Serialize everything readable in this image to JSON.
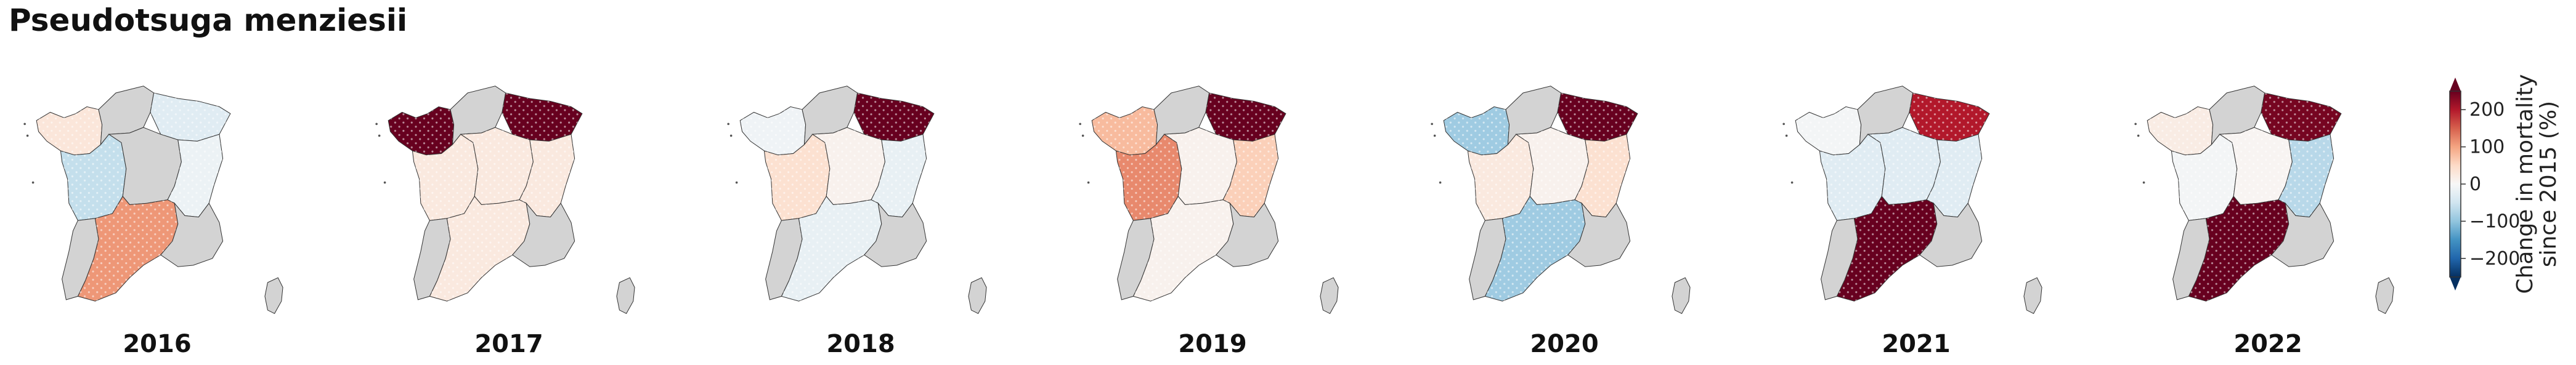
{
  "title": "Pseudotsuga menziesii",
  "years": [
    "2016",
    "2017",
    "2018",
    "2019",
    "2020",
    "2021",
    "2022"
  ],
  "colorbar": {
    "label_line1": "Change in mortality",
    "label_line2": "since 2015 (%)",
    "ticks": [
      "200",
      "100",
      "0",
      "−100",
      "−200"
    ],
    "tick_values": [
      200,
      100,
      0,
      -100,
      -200
    ],
    "range": [
      -250,
      250
    ],
    "colormap": "RdBu_r"
  },
  "regions": [
    "NW",
    "N",
    "NE",
    "W",
    "C",
    "E",
    "SW",
    "S",
    "SE",
    "Corsica"
  ],
  "values": {
    "2016": {
      "NW": 30,
      "N": null,
      "NE": -30,
      "W": -60,
      "C": null,
      "E": -15,
      "SW": null,
      "S": 110,
      "SE": null,
      "Corsica": null
    },
    "2017": {
      "NW": 300,
      "N": null,
      "NE": 350,
      "W": 25,
      "C": 25,
      "E": 25,
      "SW": null,
      "S": 25,
      "SE": null,
      "Corsica": null
    },
    "2018": {
      "NW": -10,
      "N": null,
      "NE": 300,
      "W": 40,
      "C": 10,
      "E": -20,
      "SW": null,
      "S": -20,
      "SE": null,
      "Corsica": null
    },
    "2019": {
      "NW": 80,
      "N": null,
      "NE": 350,
      "W": 120,
      "C": 10,
      "E": 60,
      "SW": null,
      "S": 10,
      "SE": null,
      "Corsica": null
    },
    "2020": {
      "NW": -90,
      "N": null,
      "NE": 350,
      "W": 25,
      "C": 10,
      "E": 40,
      "SW": null,
      "S": -90,
      "SE": null,
      "Corsica": null
    },
    "2021": {
      "NW": -5,
      "N": null,
      "NE": 200,
      "W": -30,
      "C": -30,
      "E": -30,
      "SW": null,
      "S": 280,
      "SE": null,
      "Corsica": null
    },
    "2022": {
      "NW": 20,
      "N": null,
      "NE": 240,
      "W": -5,
      "C": 5,
      "E": -70,
      "SW": null,
      "S": 300,
      "SE": null,
      "Corsica": null
    }
  },
  "missing_color": "#d3d3d3"
}
